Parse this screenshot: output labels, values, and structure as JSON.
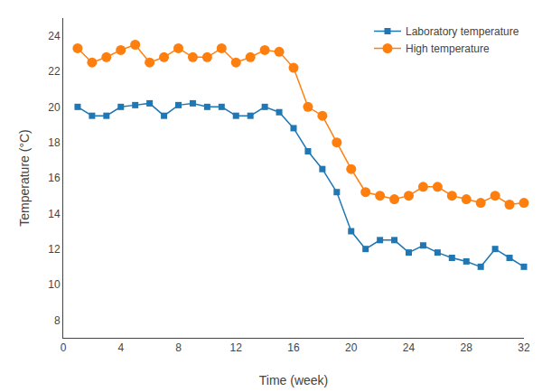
{
  "chart_data": {
    "type": "line",
    "xlabel": "Time (week)",
    "ylabel": "Temperature (°C)",
    "x": [
      1,
      2,
      3,
      4,
      5,
      6,
      7,
      8,
      9,
      10,
      11,
      12,
      13,
      14,
      15,
      16,
      17,
      18,
      19,
      20,
      21,
      22,
      23,
      24,
      25,
      26,
      27,
      28,
      29,
      30,
      31,
      32
    ],
    "series": [
      {
        "name": "Laboratory temperature",
        "marker": "square",
        "values": [
          20.0,
          19.5,
          19.5,
          20.0,
          20.1,
          20.2,
          19.5,
          20.1,
          20.2,
          20.0,
          20.0,
          19.5,
          19.5,
          20.0,
          19.7,
          18.8,
          17.5,
          16.5,
          15.2,
          13.0,
          12.0,
          12.5,
          12.5,
          11.8,
          12.2,
          11.8,
          11.5,
          11.3,
          11.0,
          12.0,
          11.5,
          11.0
        ]
      },
      {
        "name": "High temperature",
        "marker": "circle",
        "values": [
          23.3,
          22.5,
          22.8,
          23.2,
          23.5,
          22.5,
          22.8,
          23.3,
          22.8,
          22.8,
          23.3,
          22.5,
          22.8,
          23.2,
          23.1,
          22.2,
          20.0,
          19.5,
          18.0,
          16.5,
          15.2,
          15.0,
          14.8,
          15.0,
          15.5,
          15.5,
          15.0,
          14.8,
          14.6,
          15.0,
          14.5,
          14.6
        ]
      }
    ],
    "xlim": [
      0,
      32
    ],
    "ylim": [
      7,
      25
    ],
    "xticks": [
      0,
      4,
      8,
      12,
      16,
      20,
      24,
      28,
      32
    ],
    "yticks": [
      8,
      10,
      12,
      14,
      16,
      18,
      20,
      22,
      24
    ],
    "grid": false,
    "legend": "upper right"
  }
}
